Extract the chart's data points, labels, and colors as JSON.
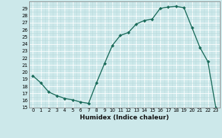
{
  "x": [
    0,
    1,
    2,
    3,
    4,
    5,
    6,
    7,
    8,
    9,
    10,
    11,
    12,
    13,
    14,
    15,
    16,
    17,
    18,
    19,
    20,
    21,
    22,
    23
  ],
  "y": [
    19.5,
    18.5,
    17.2,
    16.7,
    16.3,
    16.1,
    15.8,
    15.6,
    18.5,
    21.2,
    23.8,
    25.2,
    25.6,
    26.8,
    27.3,
    27.5,
    29.0,
    29.2,
    29.3,
    29.1,
    26.3,
    23.5,
    21.5,
    15.0
  ],
  "title": "",
  "xlabel": "Humidex (Indice chaleur)",
  "ylabel": "",
  "ylim": [
    15,
    30
  ],
  "xlim": [
    -0.5,
    23.5
  ],
  "yticks": [
    15,
    16,
    17,
    18,
    19,
    20,
    21,
    22,
    23,
    24,
    25,
    26,
    27,
    28,
    29
  ],
  "xticks": [
    0,
    1,
    2,
    3,
    4,
    5,
    6,
    7,
    8,
    9,
    10,
    11,
    12,
    13,
    14,
    15,
    16,
    17,
    18,
    19,
    20,
    21,
    22,
    23
  ],
  "line_color": "#1a6b5a",
  "marker_color": "#1a6b5a",
  "bg_color": "#cce8ea",
  "grid_major_color": "#ffffff",
  "grid_minor_color": "#b8d8da",
  "axis_color": "#888888",
  "tick_fontsize": 5.0,
  "xlabel_fontsize": 6.5
}
